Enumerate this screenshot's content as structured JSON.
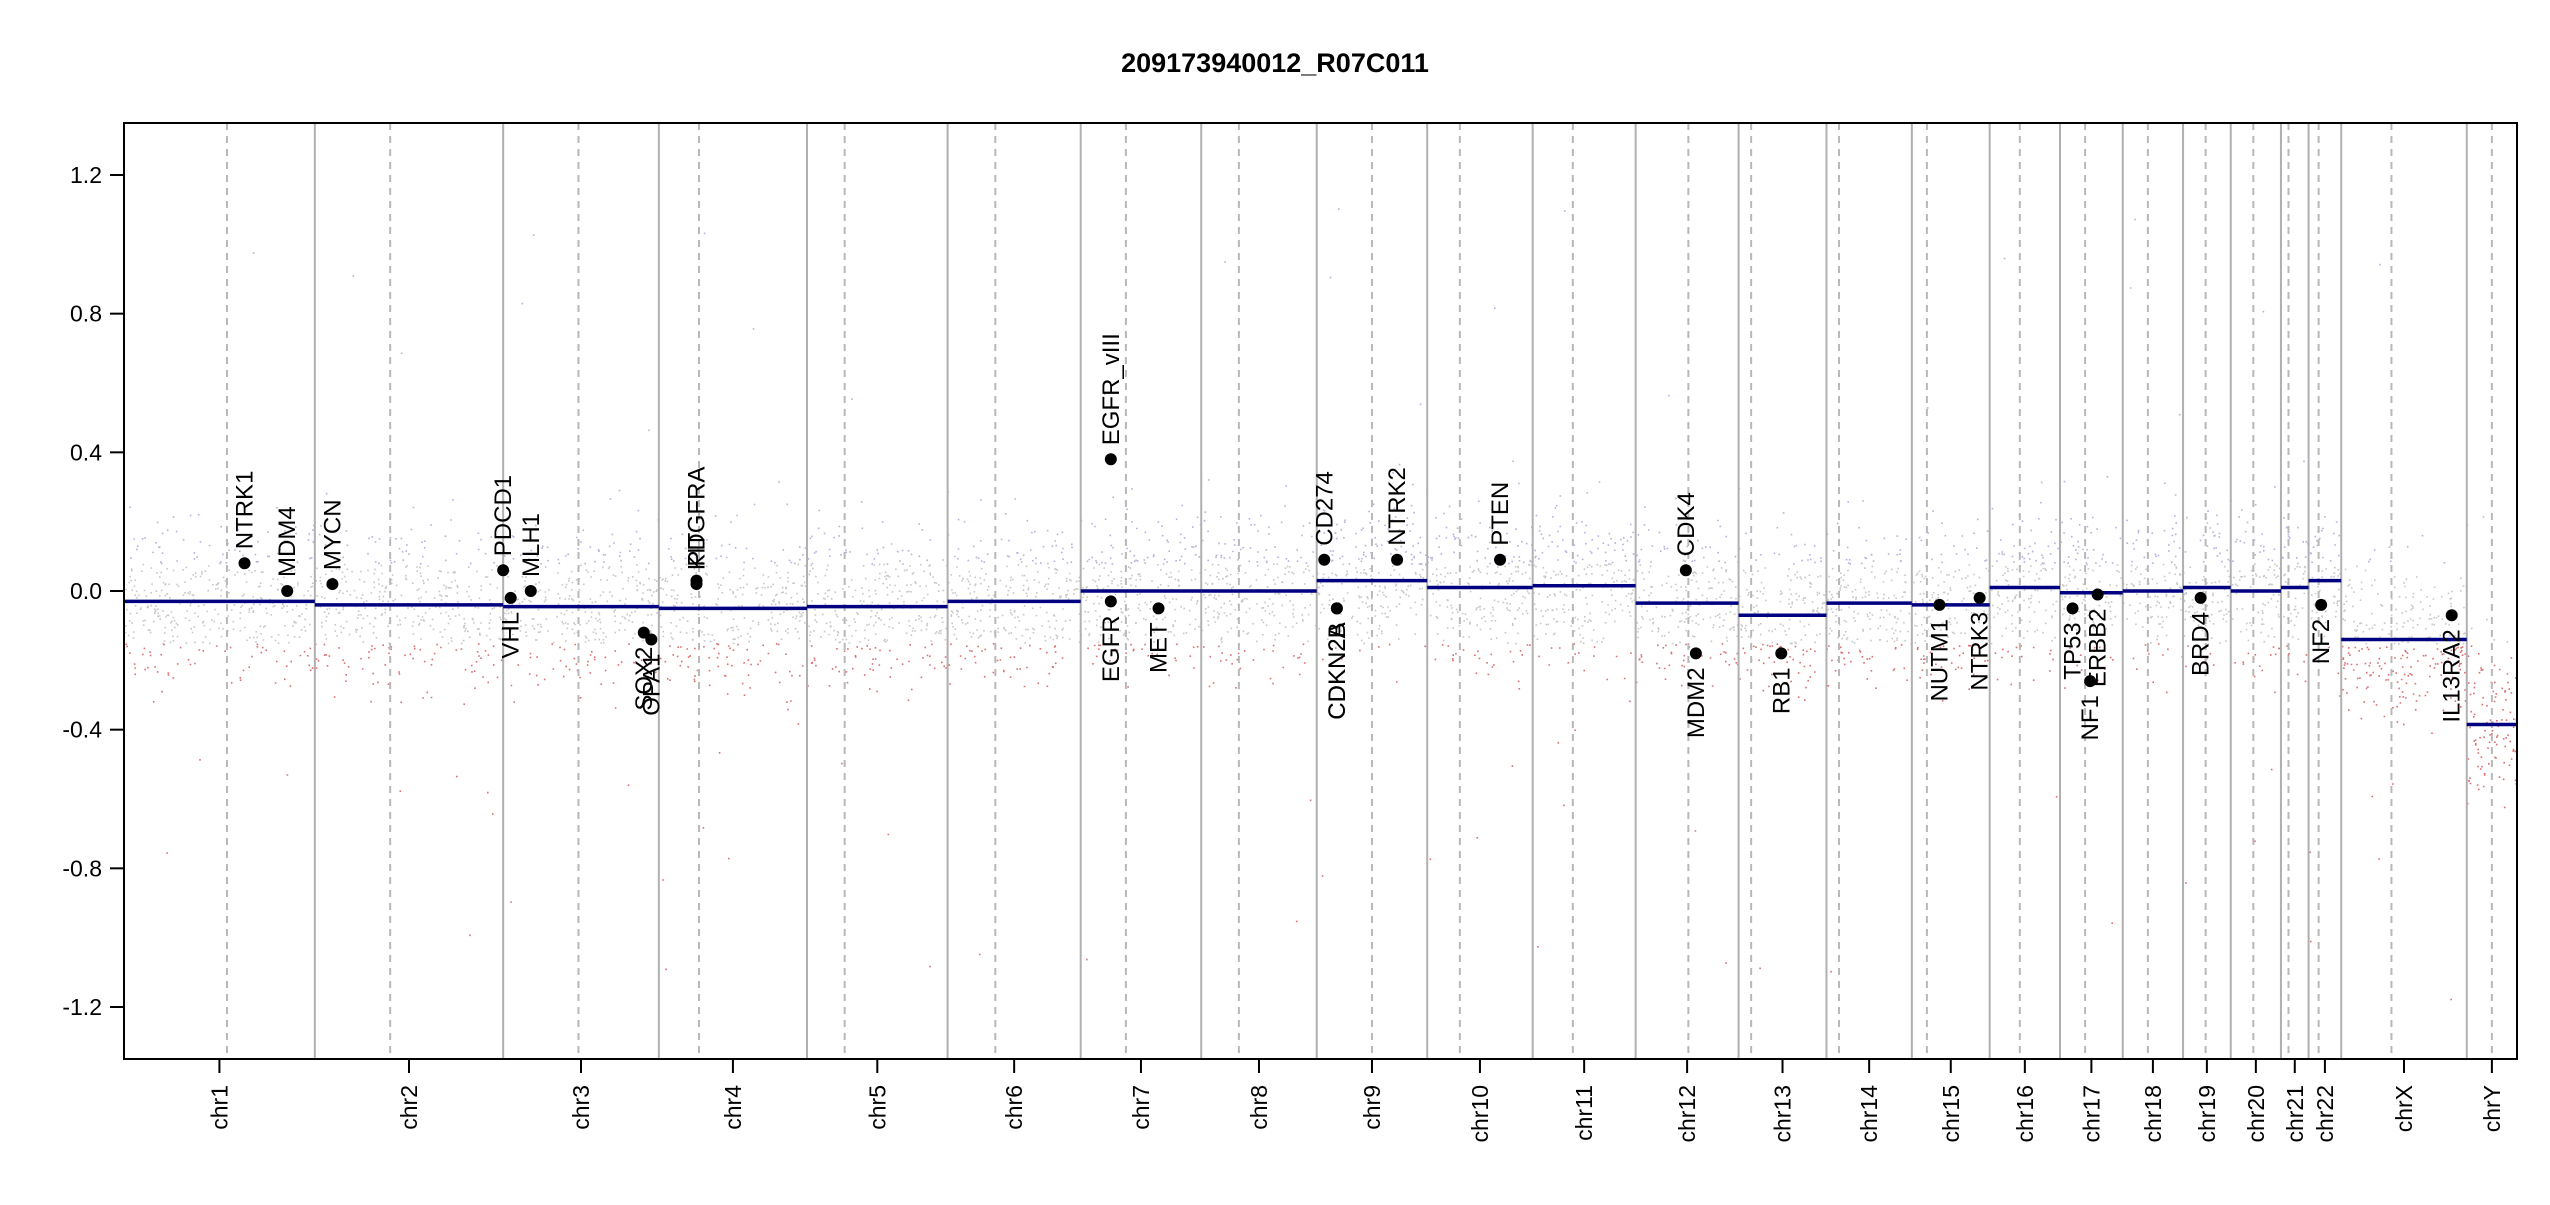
{
  "chart_data": {
    "type": "scatter",
    "title": "209173940012_R07C011",
    "xlabel": "",
    "ylabel": "",
    "ylim": [
      -1.35,
      1.35
    ],
    "yticks": [
      -1.2,
      -0.8,
      -0.4,
      0.0,
      0.4,
      0.8,
      1.2
    ],
    "ytick_labels": [
      "-1.2",
      "-0.8",
      "-0.4",
      "0.0",
      "0.4",
      "0.8",
      "1.2"
    ],
    "grid": false,
    "colors": {
      "segment": "#000080",
      "gain_points": "#8888cc",
      "loss_points": "#cc3333",
      "neutral_points": "#999999",
      "gene_point": "#000000",
      "chrom_boundary": "#b0b0b0",
      "centromere": "#b8b8b8"
    },
    "chromosomes": [
      {
        "name": "chr1",
        "start": 0.0,
        "end": 7.6,
        "centromere": 4.1
      },
      {
        "name": "chr2",
        "start": 7.6,
        "end": 15.1,
        "centromere": 10.6
      },
      {
        "name": "chr3",
        "start": 15.1,
        "end": 21.3,
        "centromere": 18.1
      },
      {
        "name": "chr4",
        "start": 21.3,
        "end": 27.2,
        "centromere": 22.9
      },
      {
        "name": "chr5",
        "start": 27.2,
        "end": 32.8,
        "centromere": 28.7
      },
      {
        "name": "chr6",
        "start": 32.8,
        "end": 38.1,
        "centromere": 34.7
      },
      {
        "name": "chr7",
        "start": 38.1,
        "end": 42.9,
        "centromere": 39.9
      },
      {
        "name": "chr8",
        "start": 42.9,
        "end": 47.5,
        "centromere": 44.4
      },
      {
        "name": "chr9",
        "start": 47.5,
        "end": 51.9,
        "centromere": 49.7
      },
      {
        "name": "chr10",
        "start": 51.9,
        "end": 56.1,
        "centromere": 53.2
      },
      {
        "name": "chr11",
        "start": 56.1,
        "end": 60.2,
        "centromere": 57.7
      },
      {
        "name": "chr12",
        "start": 60.2,
        "end": 64.3,
        "centromere": 62.3
      },
      {
        "name": "chr13",
        "start": 64.3,
        "end": 67.8,
        "centromere": 64.8
      },
      {
        "name": "chr14",
        "start": 67.8,
        "end": 71.2,
        "centromere": 68.3
      },
      {
        "name": "chr15",
        "start": 71.2,
        "end": 74.3,
        "centromere": 71.8
      },
      {
        "name": "chr16",
        "start": 74.3,
        "end": 77.1,
        "centromere": 75.5
      },
      {
        "name": "chr17",
        "start": 77.1,
        "end": 79.6,
        "centromere": 78.1
      },
      {
        "name": "chr18",
        "start": 79.6,
        "end": 82.0,
        "centromere": 80.6
      },
      {
        "name": "chr19",
        "start": 82.0,
        "end": 83.9,
        "centromere": 82.9
      },
      {
        "name": "chr20",
        "start": 83.9,
        "end": 85.9,
        "centromere": 84.8
      },
      {
        "name": "chr21",
        "start": 85.9,
        "end": 87.0,
        "centromere": 86.2
      },
      {
        "name": "chr22",
        "start": 87.0,
        "end": 88.3,
        "centromere": 87.4
      },
      {
        "name": "chrX",
        "start": 88.3,
        "end": 93.3,
        "centromere": 90.3
      },
      {
        "name": "chrY",
        "start": 93.3,
        "end": 95.3,
        "centromere": 94.3
      }
    ],
    "segments": [
      {
        "x0": 0.0,
        "x1": 7.6,
        "y": -0.03
      },
      {
        "x0": 7.6,
        "x1": 15.1,
        "y": -0.04
      },
      {
        "x0": 15.1,
        "x1": 21.3,
        "y": -0.045
      },
      {
        "x0": 21.3,
        "x1": 27.2,
        "y": -0.05
      },
      {
        "x0": 27.2,
        "x1": 32.8,
        "y": -0.045
      },
      {
        "x0": 32.8,
        "x1": 38.1,
        "y": -0.03
      },
      {
        "x0": 38.1,
        "x1": 42.9,
        "y": 0.0
      },
      {
        "x0": 42.9,
        "x1": 47.5,
        "y": 0.0
      },
      {
        "x0": 47.5,
        "x1": 51.9,
        "y": 0.03
      },
      {
        "x0": 51.9,
        "x1": 56.1,
        "y": 0.01
      },
      {
        "x0": 56.1,
        "x1": 60.2,
        "y": 0.015
      },
      {
        "x0": 60.2,
        "x1": 64.3,
        "y": -0.035
      },
      {
        "x0": 64.3,
        "x1": 67.8,
        "y": -0.07
      },
      {
        "x0": 67.8,
        "x1": 71.2,
        "y": -0.035
      },
      {
        "x0": 71.2,
        "x1": 74.3,
        "y": -0.04
      },
      {
        "x0": 74.3,
        "x1": 77.1,
        "y": 0.01
      },
      {
        "x0": 77.1,
        "x1": 79.6,
        "y": -0.005
      },
      {
        "x0": 79.6,
        "x1": 82.0,
        "y": 0.0
      },
      {
        "x0": 82.0,
        "x1": 83.9,
        "y": 0.01
      },
      {
        "x0": 83.9,
        "x1": 85.9,
        "y": 0.0
      },
      {
        "x0": 85.9,
        "x1": 87.0,
        "y": 0.01
      },
      {
        "x0": 87.0,
        "x1": 88.3,
        "y": 0.03
      },
      {
        "x0": 88.3,
        "x1": 93.3,
        "y": -0.14
      },
      {
        "x0": 93.3,
        "x1": 95.3,
        "y": -0.385
      }
    ],
    "genes": [
      {
        "name": "NTRK1",
        "x": 4.8,
        "y": 0.08,
        "label_side": "above"
      },
      {
        "name": "MDM4",
        "x": 6.5,
        "y": 0.0,
        "label_side": "above"
      },
      {
        "name": "MYCN",
        "x": 8.3,
        "y": 0.02,
        "label_side": "above"
      },
      {
        "name": "PDCD1",
        "x": 15.1,
        "y": 0.06,
        "label_side": "above"
      },
      {
        "name": "VHL",
        "x": 15.4,
        "y": -0.02,
        "label_side": "below"
      },
      {
        "name": "MLH1",
        "x": 16.2,
        "y": 0.0,
        "label_side": "above"
      },
      {
        "name": "SOX2",
        "x": 20.7,
        "y": -0.12,
        "label_side": "below"
      },
      {
        "name": "OPA1",
        "x": 21.0,
        "y": -0.14,
        "label_side": "below"
      },
      {
        "name": "PDGFRA",
        "x": 22.8,
        "y": 0.03,
        "label_side": "above"
      },
      {
        "name": "KIT",
        "x": 22.8,
        "y": 0.02,
        "label_side": "above"
      },
      {
        "name": "EGFR_vIII",
        "x": 39.3,
        "y": 0.38,
        "label_side": "above"
      },
      {
        "name": "EGFR",
        "x": 39.3,
        "y": -0.03,
        "label_side": "below"
      },
      {
        "name": "MET",
        "x": 41.2,
        "y": -0.05,
        "label_side": "below"
      },
      {
        "name": "CD274",
        "x": 47.8,
        "y": 0.09,
        "label_side": "above"
      },
      {
        "name": "CDKN2A",
        "x": 48.3,
        "y": -0.05,
        "label_side": "below"
      },
      {
        "name": "CDKN2B",
        "x": 48.3,
        "y": -0.05,
        "label_side": "below"
      },
      {
        "name": "NTRK2",
        "x": 50.7,
        "y": 0.09,
        "label_side": "above"
      },
      {
        "name": "PTEN",
        "x": 54.8,
        "y": 0.09,
        "label_side": "above"
      },
      {
        "name": "CDK4",
        "x": 62.2,
        "y": 0.06,
        "label_side": "above"
      },
      {
        "name": "MDM2",
        "x": 62.6,
        "y": -0.18,
        "label_side": "below"
      },
      {
        "name": "RB1",
        "x": 66.0,
        "y": -0.18,
        "label_side": "below"
      },
      {
        "name": "NUTM1",
        "x": 72.3,
        "y": -0.04,
        "label_side": "below"
      },
      {
        "name": "NTRK3",
        "x": 73.9,
        "y": -0.02,
        "label_side": "below"
      },
      {
        "name": "TP53",
        "x": 77.6,
        "y": -0.05,
        "label_side": "below"
      },
      {
        "name": "NF1",
        "x": 78.3,
        "y": -0.26,
        "label_side": "below"
      },
      {
        "name": "ERBB2",
        "x": 78.6,
        "y": -0.01,
        "label_side": "below"
      },
      {
        "name": "BRD4",
        "x": 82.7,
        "y": -0.02,
        "label_side": "below"
      },
      {
        "name": "NF2",
        "x": 87.5,
        "y": -0.04,
        "label_side": "below"
      },
      {
        "name": "IL13RA2",
        "x": 92.7,
        "y": -0.07,
        "label_side": "below"
      }
    ]
  }
}
